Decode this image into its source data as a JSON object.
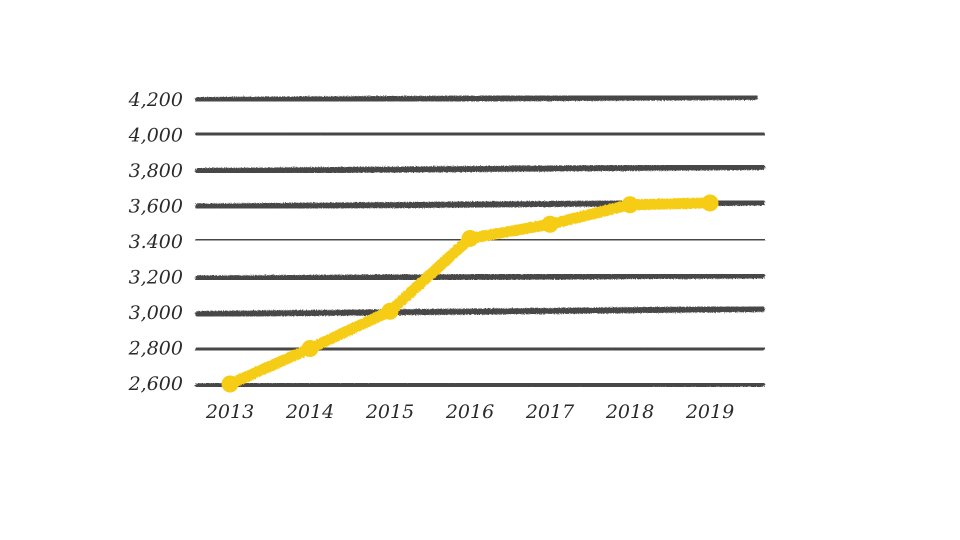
{
  "chart_data": {
    "type": "line",
    "title": "",
    "xlabel": "",
    "ylabel": "",
    "categories": [
      "2013",
      "2014",
      "2015",
      "2016",
      "2017",
      "2018",
      "2019"
    ],
    "series": [
      {
        "values": [
          2600,
          2800,
          3010,
          3420,
          3500,
          3610,
          3620
        ]
      }
    ],
    "ylim": [
      2600,
      4200
    ],
    "yticks": [
      2600,
      2800,
      3000,
      3200,
      3400,
      3600,
      3800,
      4000,
      4200
    ],
    "ytick_labels": [
      "2,600",
      "2,800",
      "3,000",
      "3,200",
      "3.400",
      "3,600",
      "3,800",
      "4,000",
      "4,200"
    ],
    "grid": true,
    "legend": "none",
    "colors": {
      "line": "#f6cd14",
      "grid": "#2f2f2f",
      "text": "#2b2b2b"
    }
  }
}
